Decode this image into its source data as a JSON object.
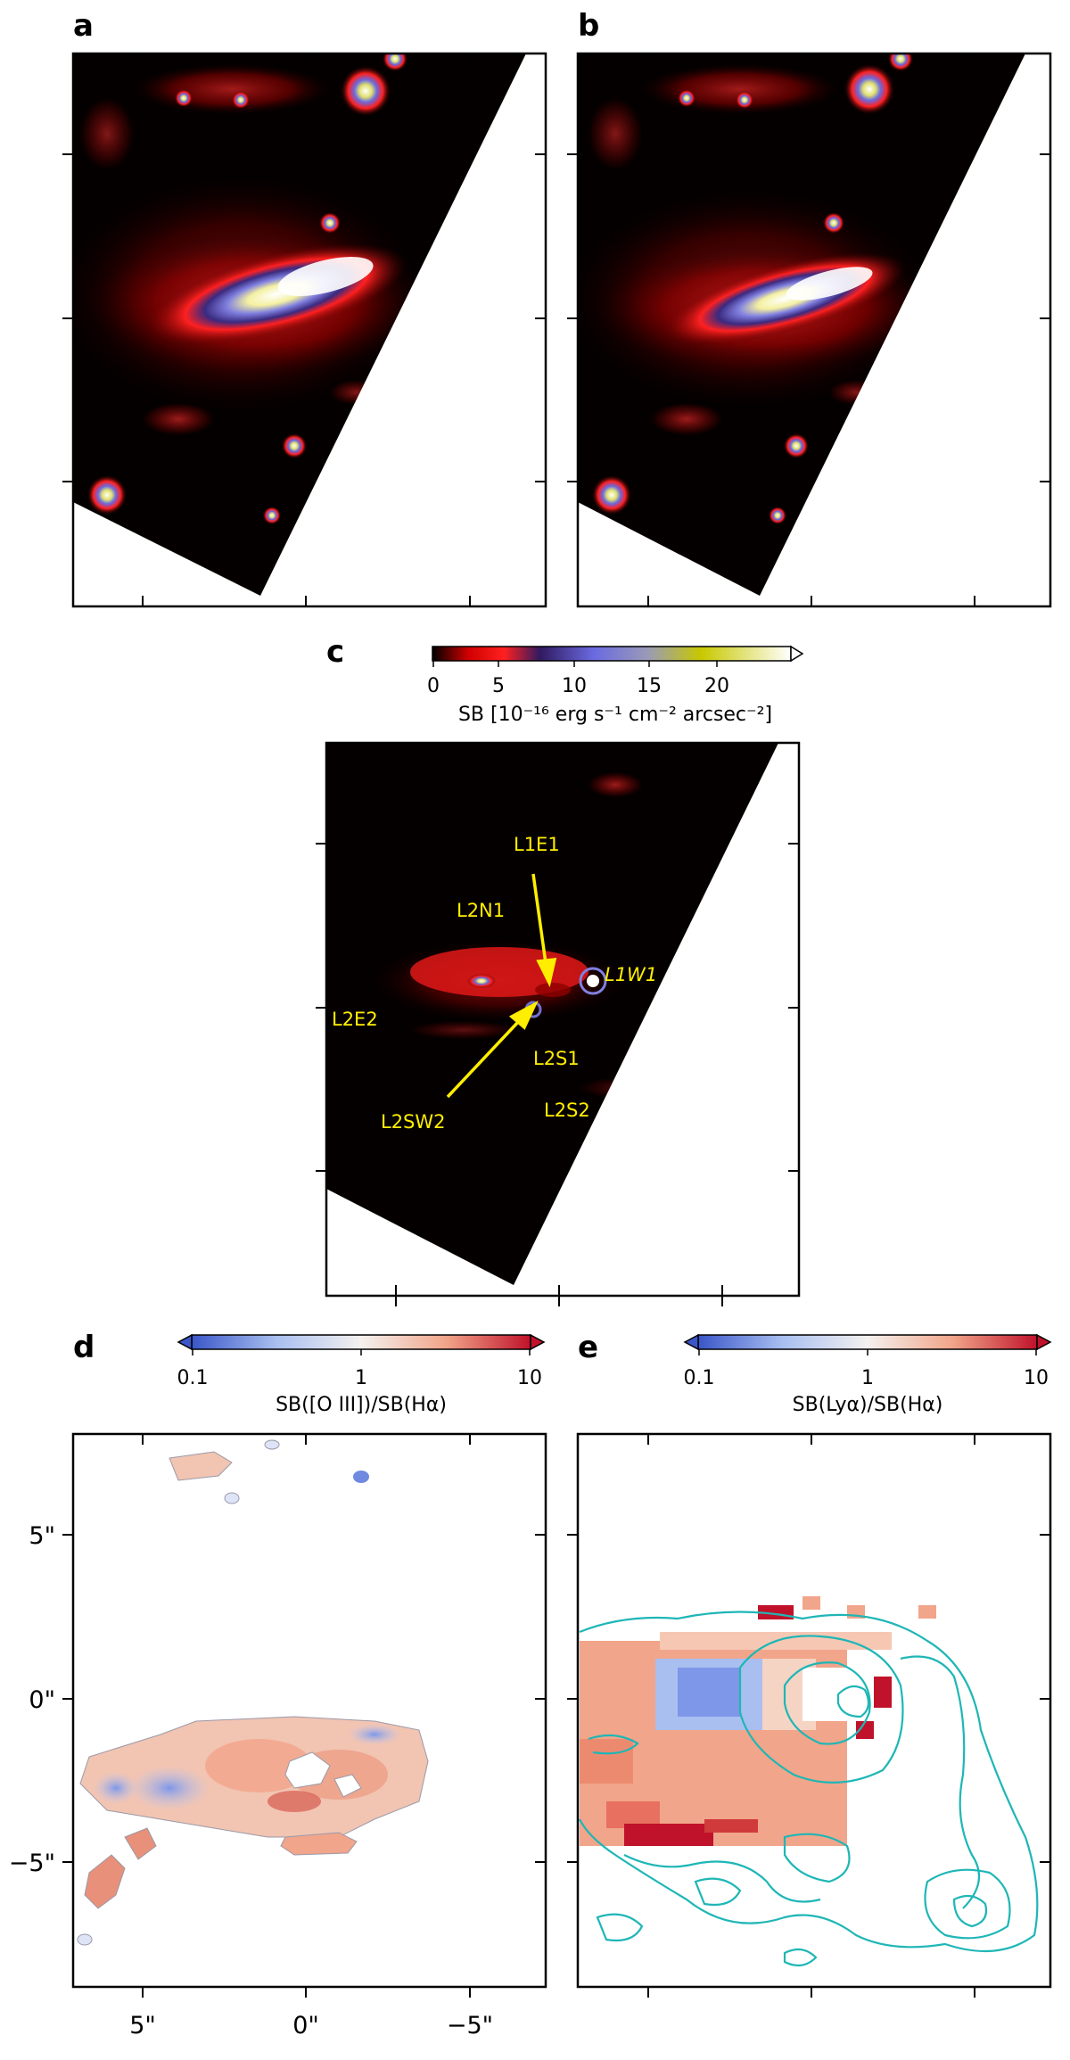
{
  "panels": {
    "a": {
      "label": "a"
    },
    "b": {
      "label": "b"
    },
    "c": {
      "label": "c",
      "annotations": [
        "L1E1",
        "L2N1",
        "L1W1",
        "L2E2",
        "L2S1",
        "L2SW2",
        "L2S2"
      ]
    },
    "d": {
      "label": "d"
    },
    "e": {
      "label": "e"
    }
  },
  "colorbars": {
    "sb": {
      "ticks": [
        "0",
        "5",
        "10",
        "15",
        "20"
      ],
      "label": "SB [10⁻¹⁶ erg s⁻¹ cm⁻² arcsec⁻²]",
      "colors": [
        "#000000",
        "#5a0000",
        "#d00000",
        "#ff2a2a",
        "#3a2a7a",
        "#7070e0",
        "#a0a0c0",
        "#c8c800",
        "#ffffff"
      ]
    },
    "oiii_ha": {
      "ticks": [
        "0.1",
        "1",
        "10"
      ],
      "label": "SB([O III])/SB(Hα)",
      "colors": [
        "#3a56c8",
        "#a9bff0",
        "#f4f1ef",
        "#f1a58a",
        "#c0122a"
      ]
    },
    "lya_ha": {
      "ticks": [
        "0.1",
        "1",
        "10"
      ],
      "label": "SB(Lyα)/SB(Hα)",
      "colors": [
        "#3a56c8",
        "#a9bff0",
        "#f4f1ef",
        "#f1a58a",
        "#c0122a"
      ]
    }
  },
  "axes": {
    "y_ticks": [
      "5\"",
      "0\"",
      "−5\""
    ],
    "x_ticks": [
      "5\"",
      "0\"",
      "−5\""
    ]
  },
  "contour_color": "#1fb6b6"
}
